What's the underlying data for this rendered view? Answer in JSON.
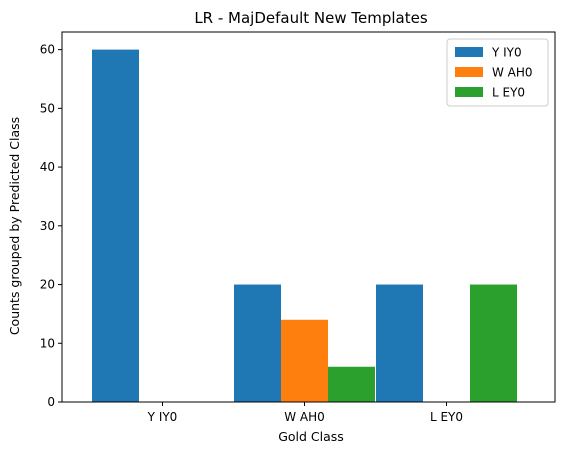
{
  "chart_data": {
    "type": "bar",
    "title": "LR - MajDefault New Templates",
    "xlabel": "Gold Class",
    "ylabel": "Counts grouped by Predicted Class",
    "categories": [
      "Y IY0",
      "W AH0",
      "L EY0"
    ],
    "series": [
      {
        "name": "Y IY0",
        "values": [
          60,
          20,
          20
        ],
        "color": "#1f77b4"
      },
      {
        "name": "W AH0",
        "values": [
          0,
          14,
          0
        ],
        "color": "#ff7f0e"
      },
      {
        "name": "L EY0",
        "values": [
          0,
          6,
          20
        ],
        "color": "#2ca02c"
      }
    ],
    "ylim": [
      0,
      63
    ],
    "yticks": [
      0,
      10,
      20,
      30,
      40,
      50,
      60
    ],
    "legend": "top-right",
    "grid": false
  }
}
